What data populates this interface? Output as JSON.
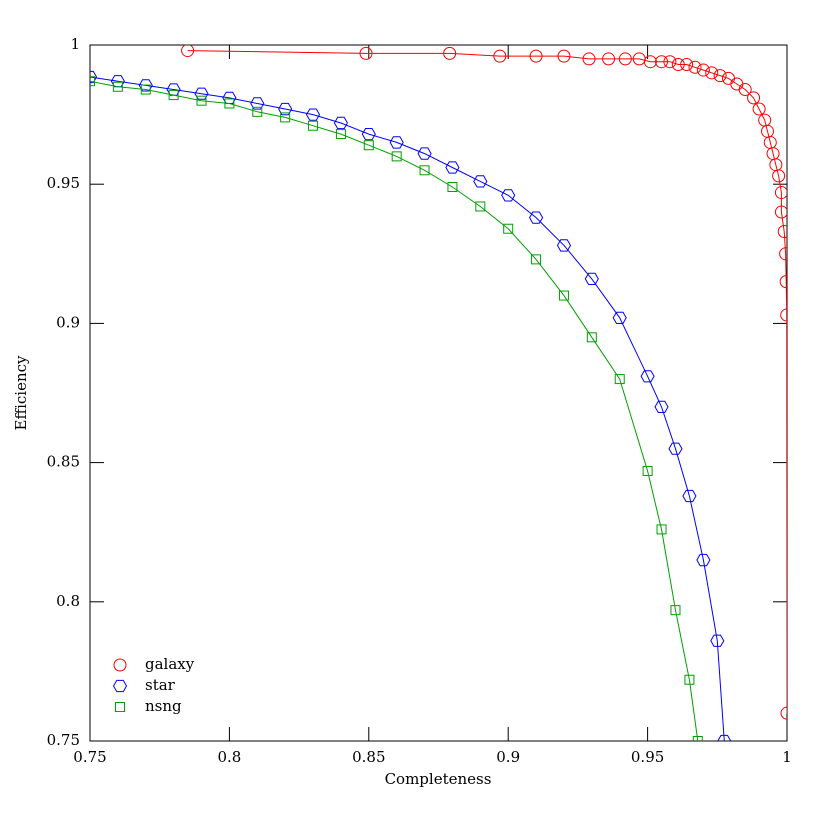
{
  "chart_data": {
    "type": "line",
    "xlabel": "Completeness",
    "ylabel": "Efficiency",
    "xlim": [
      0.75,
      1
    ],
    "ylim": [
      0.75,
      1
    ],
    "xticks": [
      0.75,
      0.8,
      0.85,
      0.9,
      0.95,
      1
    ],
    "yticks": [
      0.75,
      0.8,
      0.85,
      0.9,
      0.95,
      1
    ],
    "legend": "lower left",
    "series": [
      {
        "name": "galaxy",
        "color": "#ff0000",
        "marker": "circle",
        "x": [
          0.785,
          0.849,
          0.879,
          0.897,
          0.91,
          0.92,
          0.929,
          0.936,
          0.942,
          0.947,
          0.951,
          0.955,
          0.958,
          0.961,
          0.964,
          0.967,
          0.97,
          0.973,
          0.976,
          0.979,
          0.982,
          0.985,
          0.988,
          0.99,
          0.992,
          0.993,
          0.994,
          0.995,
          0.996,
          0.997,
          0.998,
          0.998,
          0.999,
          0.9995,
          0.9997,
          0.9999,
          1
        ],
        "y": [
          0.998,
          0.997,
          0.997,
          0.996,
          0.996,
          0.996,
          0.995,
          0.995,
          0.995,
          0.995,
          0.994,
          0.994,
          0.994,
          0.993,
          0.993,
          0.992,
          0.991,
          0.99,
          0.989,
          0.988,
          0.986,
          0.984,
          0.981,
          0.977,
          0.973,
          0.969,
          0.965,
          0.961,
          0.957,
          0.953,
          0.947,
          0.94,
          0.933,
          0.925,
          0.915,
          0.903,
          0.76
        ]
      },
      {
        "name": "star",
        "color": "#0000ff",
        "marker": "hexagon",
        "x": [
          0.75,
          0.76,
          0.77,
          0.78,
          0.79,
          0.8,
          0.81,
          0.82,
          0.83,
          0.84,
          0.85,
          0.86,
          0.87,
          0.88,
          0.89,
          0.9,
          0.91,
          0.92,
          0.93,
          0.94,
          0.95,
          0.955,
          0.96,
          0.965,
          0.97,
          0.975,
          0.9775
        ],
        "y": [
          0.9885,
          0.987,
          0.9855,
          0.984,
          0.9825,
          0.981,
          0.979,
          0.977,
          0.975,
          0.972,
          0.968,
          0.965,
          0.961,
          0.956,
          0.951,
          0.946,
          0.938,
          0.928,
          0.916,
          0.902,
          0.881,
          0.87,
          0.855,
          0.838,
          0.815,
          0.786,
          0.75
        ]
      },
      {
        "name": "nsng",
        "color": "#00a000",
        "marker": "square",
        "x": [
          0.75,
          0.76,
          0.77,
          0.78,
          0.79,
          0.8,
          0.81,
          0.82,
          0.83,
          0.84,
          0.85,
          0.86,
          0.87,
          0.88,
          0.89,
          0.9,
          0.91,
          0.92,
          0.93,
          0.94,
          0.95,
          0.955,
          0.96,
          0.965,
          0.968
        ],
        "y": [
          0.987,
          0.985,
          0.984,
          0.982,
          0.98,
          0.979,
          0.976,
          0.974,
          0.971,
          0.968,
          0.964,
          0.96,
          0.955,
          0.949,
          0.942,
          0.934,
          0.923,
          0.91,
          0.895,
          0.88,
          0.847,
          0.826,
          0.797,
          0.772,
          0.75
        ]
      }
    ]
  }
}
